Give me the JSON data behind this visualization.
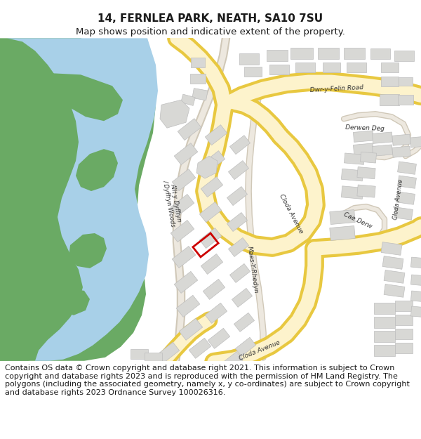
{
  "title": "14, FERNLEA PARK, NEATH, SA10 7SU",
  "subtitle": "Map shows position and indicative extent of the property.",
  "footer_text": "Contains OS data © Crown copyright and database right 2021. This information is subject to Crown copyright and database rights 2023 and is reproduced with the permission of HM Land Registry. The polygons (including the associated geometry, namely x, y co-ordinates) are subject to Crown copyright and database rights 2023 Ordnance Survey 100026316.",
  "bg_color": "#ffffff",
  "map_bg": "#f8f8f5",
  "green_color": "#6aaa64",
  "water_color": "#a8d0e8",
  "road_fill": "#fdf3cc",
  "road_edge": "#e8c840",
  "building_fill": "#d8d8d5",
  "building_edge": "#bebebe",
  "highlight_color": "#cc0000",
  "path_fill": "#ede8df",
  "path_edge": "#d0c8b8",
  "title_fontsize": 11,
  "subtitle_fontsize": 9.5,
  "footer_fontsize": 8
}
